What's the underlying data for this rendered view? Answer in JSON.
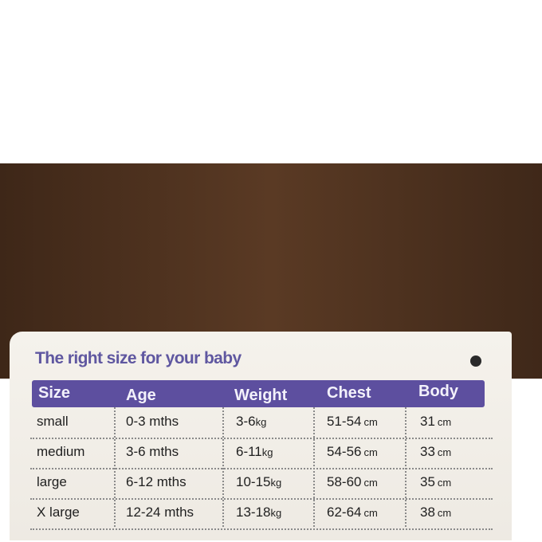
{
  "title": "The right size for your baby",
  "colors": {
    "header": "#5d4f9f",
    "title": "#5f57a0",
    "card": "#f3efe9"
  },
  "headers": [
    "Size",
    "Age",
    "Weight",
    "Chest",
    "Body"
  ],
  "rows": [
    {
      "size": "small",
      "age": "0-3 mths",
      "weight": "3-6",
      "weight_unit": "kg",
      "chest": "51-54",
      "chest_unit": "cm",
      "body": "31",
      "body_unit": "cm"
    },
    {
      "size": "medium",
      "age": "3-6 mths",
      "weight": "6-11",
      "weight_unit": "kg",
      "chest": "54-56",
      "chest_unit": "cm",
      "body": "33",
      "body_unit": "cm"
    },
    {
      "size": "large",
      "age": "6-12 mths",
      "weight": "10-15",
      "weight_unit": "kg",
      "chest": "58-60",
      "chest_unit": "cm",
      "body": "35",
      "body_unit": "cm"
    },
    {
      "size": "X large",
      "age": "12-24 mths",
      "weight": "13-18",
      "weight_unit": "kg",
      "chest": "62-64",
      "chest_unit": "cm",
      "body": "38",
      "body_unit": "cm"
    }
  ]
}
